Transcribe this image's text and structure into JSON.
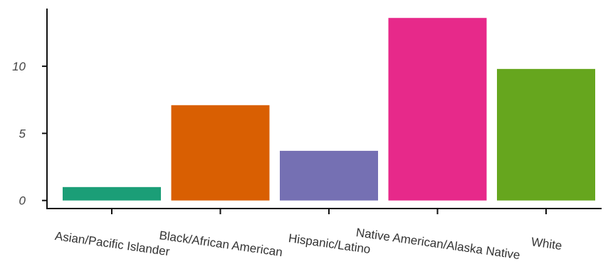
{
  "chart_data": {
    "type": "bar",
    "title": "",
    "xlabel": "",
    "ylabel": "",
    "categories": [
      "Asian/Pacific Islander",
      "Black/African American",
      "Hispanic/Latino",
      "Native American/Alaska Native",
      "White"
    ],
    "values": [
      1.0,
      7.1,
      3.7,
      13.6,
      9.8
    ],
    "colors": [
      "#1b9e77",
      "#d95f02",
      "#7570b3",
      "#e7298a",
      "#66a61e"
    ],
    "ylim": [
      -0.6,
      14.3
    ],
    "yticks": [
      0,
      5,
      10
    ],
    "ytick_labels": [
      "0",
      "5",
      "10"
    ],
    "grid": false,
    "legend": "none"
  }
}
